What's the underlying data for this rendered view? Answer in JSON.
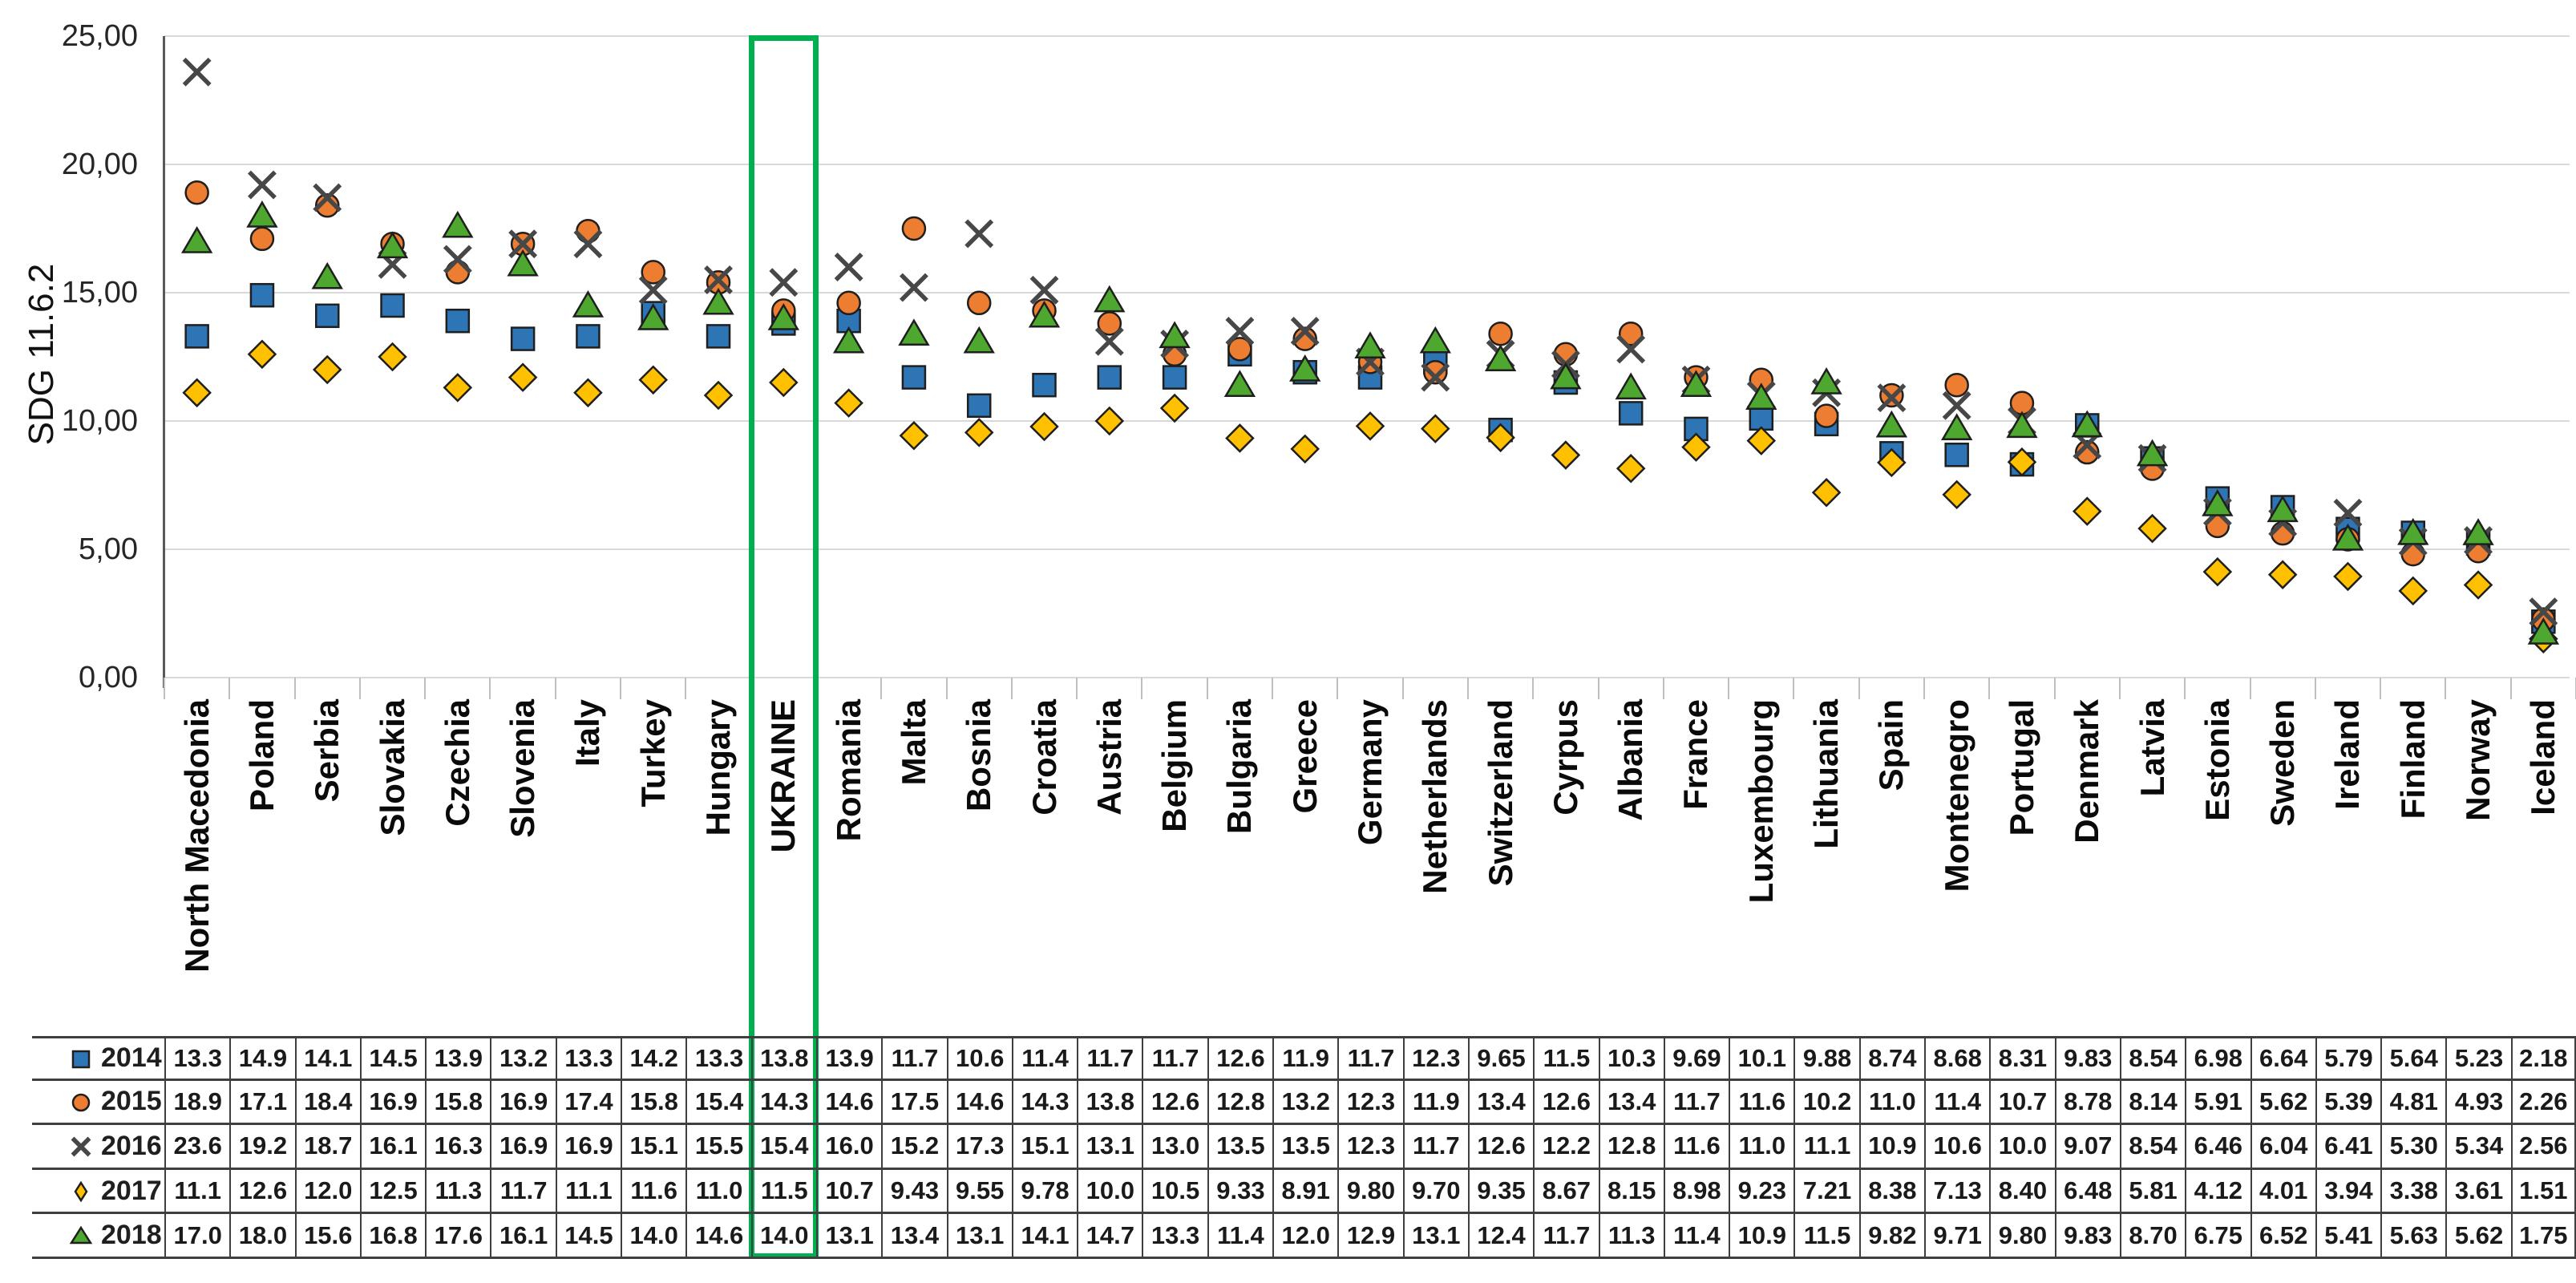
{
  "chart_data": {
    "type": "scatter",
    "title": "",
    "xlabel": "",
    "ylabel": "SDG 11.6.2",
    "ylim": [
      0,
      25
    ],
    "grid": true,
    "legend_position": "table rows at left of data table",
    "decimal_style_axis": "comma",
    "y_ticks": [
      {
        "v": 25,
        "label": "25,00"
      },
      {
        "v": 20,
        "label": "20,00"
      },
      {
        "v": 15,
        "label": "15,00"
      },
      {
        "v": 10,
        "label": "10,00"
      },
      {
        "v": 5,
        "label": "5,00"
      },
      {
        "v": 0,
        "label": "0,00"
      }
    ],
    "categories": [
      "North Macedonia",
      "Poland",
      "Serbia",
      "Slovakia",
      "Czechia",
      "Slovenia",
      "Italy",
      "Turkey",
      "Hungary",
      "UKRAINE",
      "Romania",
      "Malta",
      "Bosnia",
      "Croatia",
      "Austria",
      "Belgium",
      "Bulgaria",
      "Greece",
      "Germany",
      "Netherlands",
      "Switzerland",
      "Cyrpus",
      "Albania",
      "France",
      "Luxembourg",
      "Lithuania",
      "Spain",
      "Montenegro",
      "Portugal",
      "Denmark",
      "Latvia",
      "Estonia",
      "Sweden",
      "Ireland",
      "Finland",
      "Norway",
      "Iceland"
    ],
    "series": [
      {
        "name": "2014",
        "marker": "square",
        "color": "#2E75B6",
        "values": [
          "13.3",
          "14.9",
          "14.1",
          "14.5",
          "13.9",
          "13.2",
          "13.3",
          "14.2",
          "13.3",
          "13.8",
          "13.9",
          "11.7",
          "10.6",
          "11.4",
          "11.7",
          "11.7",
          "12.6",
          "11.9",
          "11.7",
          "12.3",
          "9.65",
          "11.5",
          "10.3",
          "9.69",
          "10.1",
          "9.88",
          "8.74",
          "8.68",
          "8.31",
          "9.83",
          "8.54",
          "6.98",
          "6.64",
          "5.79",
          "5.64",
          "5.23",
          "2.18"
        ]
      },
      {
        "name": "2015",
        "marker": "circle",
        "color": "#ED7D31",
        "values": [
          "18.9",
          "17.1",
          "18.4",
          "16.9",
          "15.8",
          "16.9",
          "17.4",
          "15.8",
          "15.4",
          "14.3",
          "14.6",
          "17.5",
          "14.6",
          "14.3",
          "13.8",
          "12.6",
          "12.8",
          "13.2",
          "12.3",
          "11.9",
          "13.4",
          "12.6",
          "13.4",
          "11.7",
          "11.6",
          "10.2",
          "11.0",
          "11.4",
          "10.7",
          "8.78",
          "8.14",
          "5.91",
          "5.62",
          "5.39",
          "4.81",
          "4.93",
          "2.26"
        ]
      },
      {
        "name": "2016",
        "marker": "x",
        "color": "#474747",
        "values": [
          "23.6",
          "19.2",
          "18.7",
          "16.1",
          "16.3",
          "16.9",
          "16.9",
          "15.1",
          "15.5",
          "15.4",
          "16.0",
          "15.2",
          "17.3",
          "15.1",
          "13.1",
          "13.0",
          "13.5",
          "13.5",
          "12.3",
          "11.7",
          "12.6",
          "12.2",
          "12.8",
          "11.6",
          "11.0",
          "11.1",
          "10.9",
          "10.6",
          "10.0",
          "9.07",
          "8.54",
          "6.46",
          "6.04",
          "6.41",
          "5.30",
          "5.34",
          "2.56"
        ]
      },
      {
        "name": "2017",
        "marker": "diamond",
        "color": "#FFC000",
        "values": [
          "11.1",
          "12.6",
          "12.0",
          "12.5",
          "11.3",
          "11.7",
          "11.1",
          "11.6",
          "11.0",
          "11.5",
          "10.7",
          "9.43",
          "9.55",
          "9.78",
          "10.0",
          "10.5",
          "9.33",
          "8.91",
          "9.80",
          "9.70",
          "9.35",
          "8.67",
          "8.15",
          "8.98",
          "9.23",
          "7.21",
          "8.38",
          "7.13",
          "8.40",
          "6.48",
          "5.81",
          "4.12",
          "4.01",
          "3.94",
          "3.38",
          "3.61",
          "1.51"
        ]
      },
      {
        "name": "2018",
        "marker": "triangle",
        "color": "#4EA72E",
        "values": [
          "17.0",
          "18.0",
          "15.6",
          "16.8",
          "17.6",
          "16.1",
          "14.5",
          "14.0",
          "14.6",
          "14.0",
          "13.1",
          "13.4",
          "13.1",
          "14.1",
          "14.7",
          "13.3",
          "11.4",
          "12.0",
          "12.9",
          "13.1",
          "12.4",
          "11.7",
          "11.3",
          "11.4",
          "10.9",
          "11.5",
          "9.82",
          "9.71",
          "9.80",
          "9.83",
          "8.70",
          "6.75",
          "6.52",
          "5.41",
          "5.63",
          "5.62",
          "1.75"
        ]
      }
    ],
    "highlight": {
      "category": "UKRAINE",
      "box_color": "#00B050"
    },
    "style": {
      "gridline_color": "#D9D9D9",
      "axis_line_color": "#595959",
      "tick_color": "#BFBFBF",
      "marker_outline": "#1F1F1F",
      "table_border_color": "#3F3F3F"
    }
  }
}
